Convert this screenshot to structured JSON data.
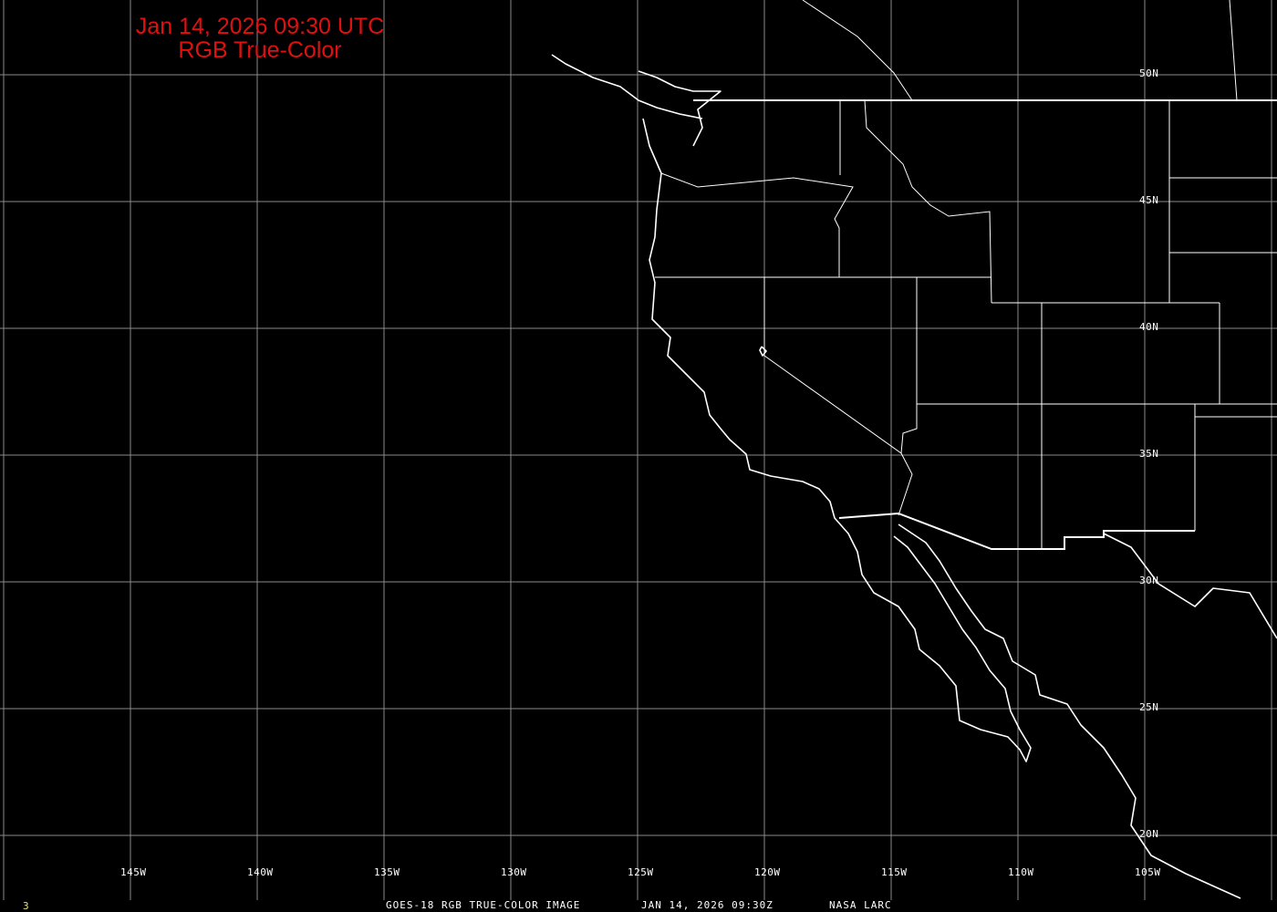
{
  "title": {
    "line1": "Jan 14, 2026 09:30 UTC",
    "line2": "RGB True-Color"
  },
  "caption": {
    "product": "GOES-18 RGB TRUE-COLOR IMAGE",
    "datetime": "JAN 14, 2026 09:30Z",
    "source": "NASA LARC"
  },
  "frame_number": "3",
  "longitude_labels": [
    "145W",
    "140W",
    "135W",
    "130W",
    "125W",
    "120W",
    "115W",
    "110W",
    "105W"
  ],
  "latitude_labels": [
    "50N",
    "45N",
    "40N",
    "35N",
    "30N",
    "25N",
    "20N"
  ],
  "colors": {
    "background": "#000000",
    "title": "#e01010",
    "grid": "#8a8a8a",
    "coastline": "#ffffff",
    "frame_number": "#e8e070"
  }
}
